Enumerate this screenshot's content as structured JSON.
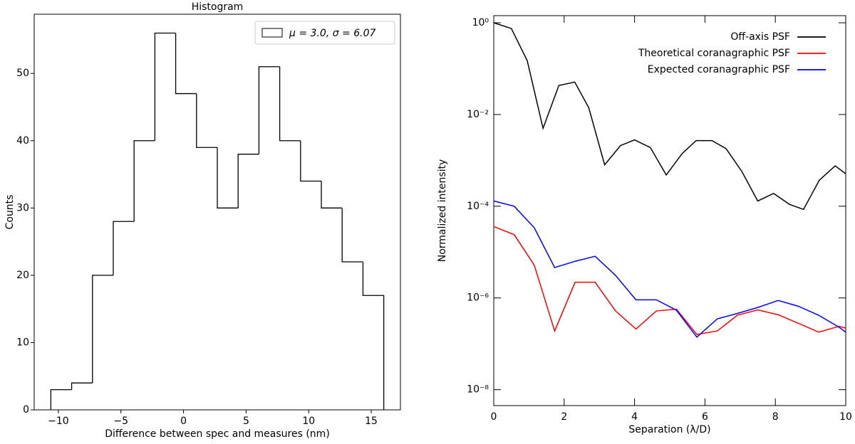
{
  "chart_data": [
    {
      "type": "histogram",
      "title": "Histogram",
      "x_label": "Difference between spec and measures (nm)",
      "y_label": "Counts",
      "bins": [
        -10.6,
        -8.9375,
        -7.275,
        -5.6125,
        -3.95,
        -2.2875,
        -0.625,
        1.0375,
        2.7,
        4.3625,
        6.025,
        7.6875,
        9.35,
        11.0125,
        12.675,
        14.3375,
        16.0
      ],
      "values": [
        3,
        4,
        20,
        28,
        40,
        56,
        47,
        39,
        30,
        38,
        51,
        40,
        34,
        30,
        22,
        17
      ],
      "legend_label": "μ = 3.0, σ = 6.07",
      "legend": "upper right",
      "color": "#000000",
      "xlim": [
        -11.93,
        17.33
      ],
      "ylim": [
        0,
        58.8
      ],
      "xticks": [
        {
          "value": -10,
          "label": "−10"
        },
        {
          "value": -5,
          "label": "−5"
        },
        0,
        5,
        10,
        15
      ],
      "yticks": [
        0,
        10,
        20,
        30,
        40,
        50
      ]
    },
    {
      "type": "line",
      "x_label": "Separation (λ/D)",
      "y_label": "Normalized intensity",
      "log_y": true,
      "legend": "upper right",
      "xlim": [
        0,
        10
      ],
      "ylim": [
        4.5e-09,
        1.43
      ],
      "xticks": [
        0,
        2,
        4,
        6,
        8,
        10
      ],
      "yticks": [
        {
          "value": 1,
          "label": "10⁰"
        },
        {
          "value": 0.01,
          "label": "10⁻²"
        },
        {
          "value": 0.0001,
          "label": "10⁻⁴"
        },
        {
          "value": 1e-06,
          "label": "10⁻⁶"
        },
        {
          "value": 1e-08,
          "label": "10⁻⁸"
        }
      ],
      "series": [
        {
          "name": "Off-axis PSF",
          "color": "#000000",
          "x": [
            0,
            0.5,
            0.95,
            1.4,
            1.85,
            2.3,
            2.7,
            3.15,
            3.6,
            4.0,
            4.45,
            4.9,
            5.35,
            5.75,
            6.2,
            6.6,
            7.05,
            7.5,
            7.95,
            8.4,
            8.8,
            9.25,
            9.7,
            10
          ],
          "values": [
            1,
            0.75,
            0.15,
            0.005,
            0.043,
            0.051,
            0.014,
            0.0008,
            0.0021,
            0.0028,
            0.0019,
            0.00048,
            0.0014,
            0.0027,
            0.0027,
            0.0018,
            0.00057,
            0.00013,
            0.00019,
            0.00011,
            8.5e-05,
            0.00037,
            0.00076,
            0.00051
          ]
        },
        {
          "name": "Theoretical coranagraphic PSF",
          "color": "#ff0000",
          "x": [
            0,
            0.58,
            1.15,
            1.73,
            2.31,
            2.88,
            3.46,
            4.04,
            4.62,
            5.19,
            5.77,
            6.35,
            6.92,
            7.5,
            8.08,
            8.65,
            9.23,
            9.81,
            10
          ],
          "values": [
            3.6e-05,
            2.4e-05,
            5.2e-06,
            1.9e-07,
            2.2e-06,
            2.2e-06,
            5.2e-07,
            2.1e-07,
            5.2e-07,
            5.7e-07,
            1.6e-07,
            1.9e-07,
            4.2e-07,
            5.5e-07,
            4.3e-07,
            2.8e-07,
            1.8e-07,
            2.4e-07,
            2.2e-07
          ]
        },
        {
          "name": "Expected coranagraphic PSF",
          "color": "#0000ff",
          "x": [
            0,
            0.58,
            1.15,
            1.73,
            2.31,
            2.88,
            3.46,
            4.04,
            4.62,
            5.19,
            5.77,
            6.35,
            6.92,
            7.5,
            8.08,
            8.65,
            9.23,
            9.81,
            10
          ],
          "values": [
            0.00013,
            0.0001,
            3.4e-05,
            4.6e-06,
            6.3e-06,
            8.1e-06,
            3.1e-06,
            9.1e-07,
            9.1e-07,
            5.4e-07,
            1.4e-07,
            3.5e-07,
            4.6e-07,
            6.2e-07,
            8.8e-07,
            6.6e-07,
            4.2e-07,
            2.3e-07,
            1.8e-07
          ]
        }
      ]
    }
  ]
}
